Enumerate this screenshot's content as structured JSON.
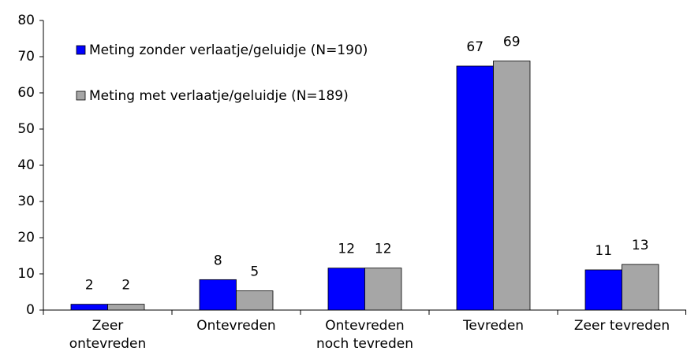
{
  "chart_data": {
    "type": "bar",
    "categories": [
      "Zeer\nontevreden",
      "Ontevreden",
      "Ontevreden\nnoch tevreden",
      "Tevreden",
      "Zeer tevreden"
    ],
    "series": [
      {
        "name": "Meting zonder verlaatje/geluidje (N=190)",
        "color": "#0000ff",
        "values": [
          1.6,
          8.4,
          11.6,
          67.4,
          11.1
        ],
        "value_labels": [
          "2",
          "8",
          "12",
          "67",
          "11"
        ]
      },
      {
        "name": "Meting met verlaatje/geluidje (N=189)",
        "color": "#a6a6a6",
        "values": [
          1.6,
          5.3,
          11.6,
          68.8,
          12.6
        ],
        "value_labels": [
          "2",
          "5",
          "12",
          "69",
          "13"
        ]
      }
    ],
    "ylim": [
      0,
      80
    ],
    "yticks": [
      0,
      10,
      20,
      30,
      40,
      50,
      60,
      70,
      80
    ],
    "grid": false,
    "legend": "top-left"
  }
}
